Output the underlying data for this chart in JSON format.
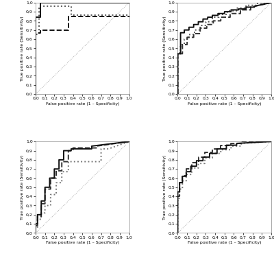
{
  "fig_width": 4.0,
  "fig_height": 3.73,
  "dpi": 100,
  "background_color": "#ffffff",
  "axes_background": "#ffffff",
  "grid_color": "#dddddd",
  "diagonal_color": "#aaaaaa",
  "panels": [
    {
      "curves": [
        {
          "x": [
            0.0,
            0.0,
            0.0,
            0.05,
            0.05,
            1.0
          ],
          "y": [
            0.0,
            0.84,
            0.84,
            0.84,
            1.0,
            1.0
          ],
          "style": "solid",
          "lw": 1.4,
          "color": "#111111",
          "zorder": 5
        },
        {
          "x": [
            0.0,
            0.0,
            0.05,
            0.05,
            0.35,
            0.35,
            0.4,
            0.4,
            0.75,
            0.75,
            1.0
          ],
          "y": [
            0.0,
            0.67,
            0.67,
            0.7,
            0.7,
            0.85,
            0.85,
            0.85,
            0.85,
            0.85,
            0.85
          ],
          "style": "dashed",
          "lw": 1.4,
          "color": "#111111",
          "zorder": 4
        },
        {
          "x": [
            0.0,
            0.0,
            0.04,
            0.04,
            0.04,
            0.38,
            0.38,
            1.0
          ],
          "y": [
            0.0,
            0.65,
            0.65,
            0.65,
            0.96,
            0.96,
            0.86,
            0.86
          ],
          "style": "dotted",
          "lw": 1.4,
          "color": "#555555",
          "zorder": 3
        }
      ]
    },
    {
      "curves": [
        {
          "x": [
            0.0,
            0.0,
            0.03,
            0.03,
            0.07,
            0.07,
            0.12,
            0.12,
            0.17,
            0.17,
            0.22,
            0.22,
            0.27,
            0.27,
            0.32,
            0.32,
            0.37,
            0.37,
            0.43,
            0.43,
            0.5,
            0.5,
            0.57,
            0.57,
            0.65,
            0.65,
            0.73,
            0.73,
            0.82,
            0.82,
            1.0
          ],
          "y": [
            0.0,
            0.44,
            0.44,
            0.67,
            0.67,
            0.7,
            0.7,
            0.73,
            0.73,
            0.76,
            0.76,
            0.79,
            0.79,
            0.82,
            0.82,
            0.84,
            0.84,
            0.86,
            0.86,
            0.88,
            0.88,
            0.9,
            0.9,
            0.92,
            0.92,
            0.93,
            0.93,
            0.95,
            0.95,
            0.96,
            1.0
          ],
          "style": "solid",
          "lw": 1.4,
          "color": "#111111",
          "zorder": 5
        },
        {
          "x": [
            0.0,
            0.0,
            0.03,
            0.03,
            0.07,
            0.07,
            0.12,
            0.12,
            0.18,
            0.18,
            0.24,
            0.24,
            0.3,
            0.3,
            0.37,
            0.37,
            0.44,
            0.44,
            0.53,
            0.53,
            0.63,
            0.63,
            0.73,
            0.73,
            0.84,
            0.84,
            1.0
          ],
          "y": [
            0.0,
            0.45,
            0.45,
            0.54,
            0.54,
            0.6,
            0.6,
            0.65,
            0.65,
            0.7,
            0.7,
            0.75,
            0.75,
            0.79,
            0.79,
            0.84,
            0.84,
            0.87,
            0.87,
            0.91,
            0.91,
            0.94,
            0.94,
            0.97,
            0.97,
            0.99,
            1.0
          ],
          "style": "dotted",
          "lw": 1.4,
          "color": "#555555",
          "zorder": 3
        },
        {
          "x": [
            0.0,
            0.0,
            0.05,
            0.05,
            0.1,
            0.1,
            0.17,
            0.17,
            0.24,
            0.24,
            0.31,
            0.31,
            0.38,
            0.38,
            0.46,
            0.46,
            0.56,
            0.56,
            0.67,
            0.67,
            0.78,
            0.78,
            1.0
          ],
          "y": [
            0.0,
            0.44,
            0.44,
            0.54,
            0.54,
            0.62,
            0.62,
            0.66,
            0.66,
            0.72,
            0.72,
            0.76,
            0.76,
            0.8,
            0.8,
            0.84,
            0.84,
            0.88,
            0.88,
            0.92,
            0.92,
            0.95,
            1.0
          ],
          "style": "dashed",
          "lw": 1.4,
          "color": "#333333",
          "zorder": 4
        }
      ]
    },
    {
      "curves": [
        {
          "x": [
            0.0,
            0.0,
            0.02,
            0.02,
            0.06,
            0.06,
            0.1,
            0.1,
            0.15,
            0.15,
            0.2,
            0.2,
            0.25,
            0.25,
            0.3,
            0.3,
            0.38,
            0.38,
            0.6,
            0.6,
            1.0
          ],
          "y": [
            0.0,
            0.1,
            0.1,
            0.2,
            0.2,
            0.35,
            0.35,
            0.5,
            0.5,
            0.6,
            0.6,
            0.7,
            0.7,
            0.8,
            0.8,
            0.9,
            0.9,
            0.92,
            0.92,
            0.95,
            1.0
          ],
          "style": "solid",
          "lw": 1.4,
          "color": "#111111",
          "zorder": 5
        },
        {
          "x": [
            0.0,
            0.0,
            0.02,
            0.02,
            0.06,
            0.06,
            0.1,
            0.1,
            0.16,
            0.16,
            0.22,
            0.22,
            0.28,
            0.28,
            0.35,
            0.35,
            0.4,
            0.4,
            0.65,
            0.65,
            1.0
          ],
          "y": [
            0.0,
            0.08,
            0.08,
            0.18,
            0.18,
            0.32,
            0.32,
            0.48,
            0.48,
            0.6,
            0.6,
            0.68,
            0.68,
            0.78,
            0.78,
            0.9,
            0.9,
            0.93,
            0.93,
            0.95,
            1.0
          ],
          "style": "dashed",
          "lw": 1.4,
          "color": "#333333",
          "zorder": 4
        },
        {
          "x": [
            0.0,
            0.0,
            0.02,
            0.02,
            0.06,
            0.06,
            0.1,
            0.1,
            0.16,
            0.16,
            0.22,
            0.22,
            0.28,
            0.28,
            0.35,
            0.35,
            0.7,
            0.7,
            0.78,
            0.78,
            1.0
          ],
          "y": [
            0.0,
            0.05,
            0.05,
            0.15,
            0.15,
            0.22,
            0.22,
            0.3,
            0.3,
            0.42,
            0.42,
            0.55,
            0.55,
            0.67,
            0.67,
            0.78,
            0.78,
            0.92,
            0.92,
            0.92,
            1.0
          ],
          "style": "dotted",
          "lw": 1.4,
          "color": "#777777",
          "zorder": 3
        }
      ]
    },
    {
      "curves": [
        {
          "x": [
            0.0,
            0.0,
            0.02,
            0.02,
            0.05,
            0.05,
            0.09,
            0.09,
            0.14,
            0.14,
            0.2,
            0.2,
            0.27,
            0.27,
            0.34,
            0.34,
            0.42,
            0.42,
            0.52,
            0.52,
            0.63,
            0.63,
            1.0
          ],
          "y": [
            0.0,
            0.45,
            0.45,
            0.55,
            0.55,
            0.62,
            0.62,
            0.67,
            0.67,
            0.73,
            0.73,
            0.79,
            0.79,
            0.83,
            0.83,
            0.87,
            0.87,
            0.92,
            0.92,
            0.96,
            0.96,
            0.98,
            1.0
          ],
          "style": "solid",
          "lw": 1.4,
          "color": "#111111",
          "zorder": 5
        },
        {
          "x": [
            0.0,
            0.0,
            0.02,
            0.02,
            0.05,
            0.05,
            0.09,
            0.09,
            0.15,
            0.15,
            0.22,
            0.22,
            0.29,
            0.29,
            0.37,
            0.37,
            0.46,
            0.46,
            0.57,
            0.57,
            0.68,
            0.68,
            1.0
          ],
          "y": [
            0.0,
            0.4,
            0.4,
            0.55,
            0.55,
            0.63,
            0.63,
            0.7,
            0.7,
            0.77,
            0.77,
            0.83,
            0.83,
            0.88,
            0.88,
            0.92,
            0.92,
            0.96,
            0.96,
            0.98,
            0.98,
            1.0,
            1.0
          ],
          "style": "dashed",
          "lw": 1.4,
          "color": "#333333",
          "zorder": 4
        },
        {
          "x": [
            0.0,
            0.0,
            0.02,
            0.02,
            0.05,
            0.05,
            0.09,
            0.09,
            0.15,
            0.15,
            0.22,
            0.22,
            0.29,
            0.29,
            0.37,
            0.37,
            0.46,
            0.46,
            0.57,
            0.57,
            0.68,
            0.68,
            1.0
          ],
          "y": [
            0.0,
            0.38,
            0.38,
            0.48,
            0.48,
            0.57,
            0.57,
            0.64,
            0.64,
            0.71,
            0.71,
            0.76,
            0.76,
            0.82,
            0.82,
            0.87,
            0.87,
            0.91,
            0.91,
            0.95,
            0.95,
            0.98,
            1.0
          ],
          "style": "dotted",
          "lw": 1.4,
          "color": "#777777",
          "zorder": 3
        }
      ]
    }
  ],
  "tick_labels": [
    "0,0",
    "0,1",
    "0,2",
    "0,3",
    "0,4",
    "0,5",
    "0,6",
    "0,7",
    "0,8",
    "0,9",
    "1,0"
  ],
  "tick_values": [
    0.0,
    0.1,
    0.2,
    0.3,
    0.4,
    0.5,
    0.6,
    0.7,
    0.8,
    0.9,
    1.0
  ],
  "xlabel": "False positive rate (1 – Specificity)",
  "ylabel": "True positive rate (Sensitivity)"
}
